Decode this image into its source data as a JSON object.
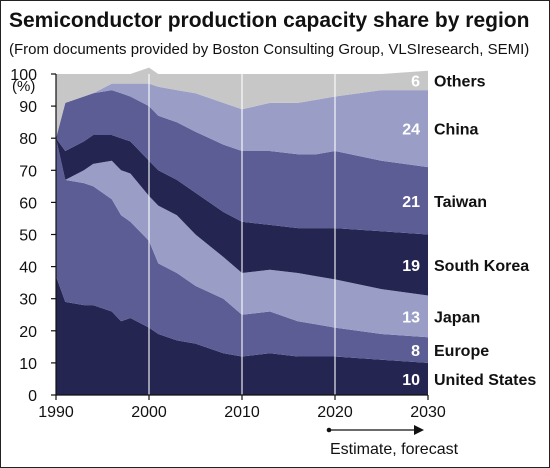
{
  "chart_data": {
    "type": "area",
    "stacked": true,
    "title": "Semiconductor production capacity share by region",
    "subtitle": "(From documents provided by Boston Consulting Group, VLSIresearch, SEMI)",
    "ylabel": "(%)",
    "xlabel": "",
    "ylim": [
      0,
      100
    ],
    "xlim": [
      1990,
      2030
    ],
    "x_ticks": [
      1990,
      2000,
      2010,
      2020,
      2030
    ],
    "y_ticks": [
      0,
      10,
      20,
      30,
      40,
      50,
      60,
      70,
      80,
      90,
      100
    ],
    "gridlines_x": [
      2000,
      2010,
      2020
    ],
    "annotation": "Estimate, forecast",
    "estimate_start": 2020,
    "x": [
      1990,
      1991,
      1993,
      1994,
      1996,
      1997,
      1998,
      2000,
      2001,
      2003,
      2005,
      2008,
      2010,
      2013,
      2016,
      2018,
      2020,
      2025,
      2030
    ],
    "series": [
      {
        "name": "United States",
        "end_label": "10",
        "color": "#252552",
        "values": [
          37,
          29,
          28,
          28,
          26,
          23,
          24,
          21,
          19,
          17,
          16,
          13,
          12,
          13,
          12,
          12,
          12,
          11,
          10
        ]
      },
      {
        "name": "Europe",
        "end_label": "8",
        "color": "#5d5d96",
        "values": [
          43,
          38,
          38,
          37,
          35,
          33,
          30,
          27,
          22,
          21,
          18,
          17,
          13,
          13,
          11,
          10,
          9,
          8,
          8
        ]
      },
      {
        "name": "Japan",
        "end_label": "13",
        "color": "#9a9ec7",
        "values": [
          0,
          0,
          4,
          7,
          12,
          14,
          15,
          14,
          18,
          18,
          16,
          13,
          13,
          13,
          15,
          15,
          15,
          14,
          13
        ]
      },
      {
        "name": "South Korea",
        "end_label": "19",
        "color": "#252552",
        "values": [
          0,
          9,
          9,
          9,
          8,
          10,
          10,
          11,
          11,
          11,
          13,
          14,
          16,
          14,
          14,
          15,
          16,
          18,
          19
        ]
      },
      {
        "name": "Taiwan",
        "end_label": "21",
        "color": "#5d5d96",
        "values": [
          0,
          15,
          14,
          13,
          14,
          14,
          14,
          17,
          17,
          18,
          19,
          21,
          22,
          23,
          23,
          23,
          24,
          22,
          21
        ]
      },
      {
        "name": "China",
        "end_label": "24",
        "color": "#9a9ec7",
        "values": [
          0,
          0,
          0,
          0,
          2,
          3,
          4,
          7,
          9,
          10,
          12,
          13,
          13,
          15,
          16,
          17,
          17,
          22,
          24
        ]
      },
      {
        "name": "Others",
        "end_label": "6",
        "color": "#c7c7c7",
        "values": [
          20,
          9,
          7,
          6,
          3,
          3,
          3,
          5,
          4,
          5,
          6,
          9,
          11,
          9,
          9,
          8,
          7,
          5,
          6
        ]
      }
    ]
  }
}
